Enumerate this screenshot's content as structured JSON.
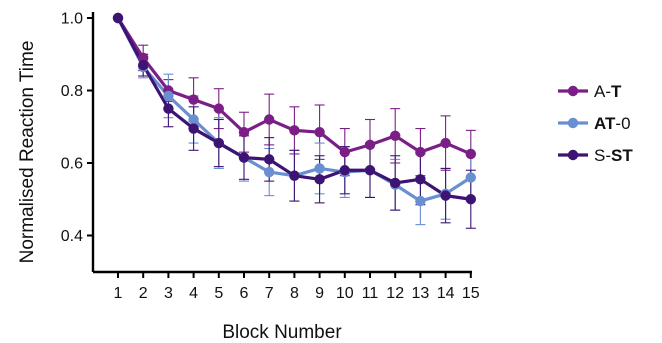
{
  "chart_data": {
    "type": "line",
    "title": "",
    "xlabel": "Block Number",
    "ylabel": "Normalised Reaction Time",
    "x": [
      1,
      2,
      3,
      4,
      5,
      6,
      7,
      8,
      9,
      10,
      11,
      12,
      13,
      14,
      15
    ],
    "x_ticks": [
      "1",
      "2",
      "3",
      "4",
      "5",
      "6",
      "7",
      "8",
      "9",
      "10",
      "11",
      "12",
      "13",
      "14",
      "15"
    ],
    "xlim": [
      0.2,
      15.2
    ],
    "ylim": [
      0.3,
      1.02
    ],
    "y_ticks": [
      "0.4",
      "0.6",
      "0.8",
      "1.0"
    ],
    "y_tick_values": [
      0.4,
      0.6,
      0.8,
      1.0
    ],
    "grid": false,
    "legend_placement": "right",
    "series": [
      {
        "name": "A-T",
        "name_parts": [
          {
            "text": "A-",
            "bold": false
          },
          {
            "text": "T",
            "bold": true
          }
        ],
        "color": "#7b1f86",
        "values": [
          1.0,
          0.89,
          0.8,
          0.775,
          0.75,
          0.685,
          0.72,
          0.69,
          0.685,
          0.63,
          0.65,
          0.675,
          0.63,
          0.655,
          0.625
        ],
        "error": [
          0.0,
          0.035,
          0.03,
          0.06,
          0.055,
          0.055,
          0.07,
          0.065,
          0.075,
          0.065,
          0.07,
          0.075,
          0.065,
          0.075,
          0.065
        ]
      },
      {
        "name": "AT-0",
        "name_parts": [
          {
            "text": "AT",
            "bold": true
          },
          {
            "text": "-0",
            "bold": false
          }
        ],
        "color": "#6a8fd0",
        "values": [
          1.0,
          0.865,
          0.785,
          0.72,
          0.655,
          0.615,
          0.575,
          0.565,
          0.585,
          0.575,
          0.58,
          0.54,
          0.495,
          0.515,
          0.56
        ],
        "error": [
          0.0,
          0.03,
          0.06,
          0.065,
          0.07,
          0.065,
          0.065,
          0.07,
          0.07,
          0.07,
          0.075,
          0.07,
          0.065,
          0.07,
          0.065
        ]
      },
      {
        "name": "S-ST",
        "name_parts": [
          {
            "text": "S-",
            "bold": false
          },
          {
            "text": "ST",
            "bold": true
          }
        ],
        "color": "#3d1473",
        "values": [
          1.0,
          0.87,
          0.75,
          0.695,
          0.655,
          0.615,
          0.61,
          0.565,
          0.555,
          0.58,
          0.58,
          0.545,
          0.555,
          0.51,
          0.5
        ],
        "error": [
          0.0,
          0.03,
          0.05,
          0.06,
          0.065,
          0.06,
          0.06,
          0.07,
          0.065,
          0.065,
          0.075,
          0.075,
          0.07,
          0.075,
          0.08
        ]
      }
    ]
  }
}
